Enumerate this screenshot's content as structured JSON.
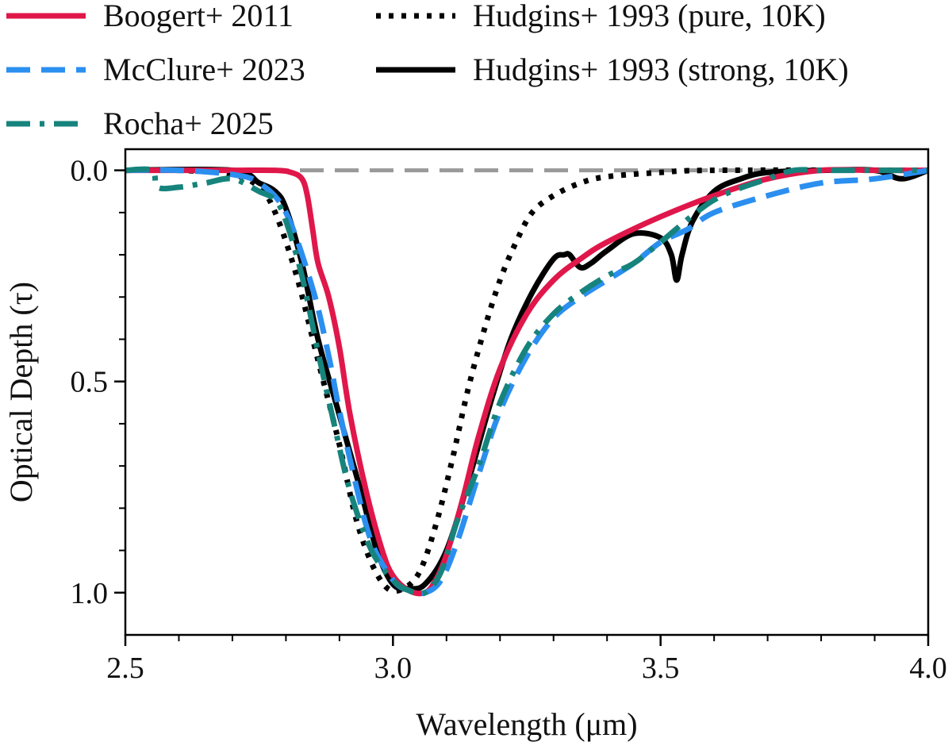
{
  "chart_data": {
    "type": "line",
    "title": "",
    "xlabel": "Wavelength (μm)",
    "ylabel": "Optical Depth (τ)",
    "xlim": [
      2.5,
      4.0
    ],
    "ylim": [
      1.1,
      -0.05
    ],
    "y_inverted": true,
    "xticks": [
      2.5,
      3.0,
      3.5,
      4.0
    ],
    "xtick_labels": [
      "2.5",
      "3.0",
      "3.5",
      "4.0"
    ],
    "xticks_minor": [
      2.6,
      2.7,
      2.8,
      2.9,
      3.1,
      3.2,
      3.3,
      3.4,
      3.6,
      3.7,
      3.8,
      3.9
    ],
    "yticks": [
      0.0,
      0.5,
      1.0
    ],
    "ytick_labels": [
      "0.0",
      "0.5",
      "1.0"
    ],
    "yticks_minor": [
      0.1,
      0.2,
      0.3,
      0.4,
      0.6,
      0.7,
      0.8,
      0.9
    ],
    "grid": false,
    "legend_position": "top",
    "reference_line": {
      "name": "zero",
      "y": 0.0,
      "color": "#999999",
      "style": "dashed"
    },
    "series": [
      {
        "name": "Boogert+ 2011",
        "color": "#e0174a",
        "style": "solid",
        "x": [
          2.5,
          2.6,
          2.7,
          2.78,
          2.81,
          2.83,
          2.84,
          2.85,
          2.86,
          2.88,
          2.9,
          2.92,
          2.95,
          2.98,
          3.0,
          3.03,
          3.06,
          3.08,
          3.1,
          3.13,
          3.16,
          3.2,
          3.25,
          3.3,
          3.35,
          3.4,
          3.5,
          3.6,
          3.7,
          3.8,
          3.9,
          4.0
        ],
        "y": [
          0.0,
          0.0,
          0.0,
          0.0,
          0.005,
          0.02,
          0.06,
          0.14,
          0.22,
          0.3,
          0.42,
          0.58,
          0.76,
          0.9,
          0.96,
          0.995,
          1.0,
          0.97,
          0.91,
          0.78,
          0.63,
          0.47,
          0.34,
          0.26,
          0.21,
          0.17,
          0.11,
          0.06,
          0.02,
          0.0,
          0.0,
          0.0
        ]
      },
      {
        "name": "McClure+ 2023",
        "color": "#2b8ff0",
        "style": "dashed",
        "x": [
          2.5,
          2.6,
          2.7,
          2.75,
          2.8,
          2.85,
          2.88,
          2.9,
          2.93,
          2.96,
          3.0,
          3.03,
          3.06,
          3.09,
          3.12,
          3.16,
          3.2,
          3.25,
          3.3,
          3.35,
          3.4,
          3.45,
          3.5,
          3.55,
          3.6,
          3.7,
          3.8,
          3.9,
          4.0
        ],
        "y": [
          0.0,
          0.0,
          0.01,
          0.03,
          0.1,
          0.28,
          0.44,
          0.57,
          0.74,
          0.88,
          0.97,
          0.995,
          1.0,
          0.97,
          0.88,
          0.72,
          0.57,
          0.44,
          0.35,
          0.3,
          0.26,
          0.22,
          0.17,
          0.14,
          0.1,
          0.06,
          0.03,
          0.02,
          0.0
        ]
      },
      {
        "name": "Rocha+ 2025",
        "color": "#16847c",
        "style": "dashdot",
        "x": [
          2.5,
          2.55,
          2.56,
          2.6,
          2.65,
          2.7,
          2.75,
          2.78,
          2.8,
          2.83,
          2.86,
          2.89,
          2.92,
          2.96,
          3.0,
          3.03,
          3.06,
          3.09,
          3.12,
          3.16,
          3.2,
          3.25,
          3.3,
          3.35,
          3.4,
          3.45,
          3.5,
          3.6,
          3.7,
          3.75,
          3.8,
          3.9,
          4.0
        ],
        "y": [
          0.0,
          0.0,
          0.04,
          0.04,
          0.03,
          0.02,
          0.05,
          0.07,
          0.12,
          0.25,
          0.43,
          0.6,
          0.76,
          0.9,
          0.97,
          0.995,
          1.0,
          0.95,
          0.83,
          0.7,
          0.55,
          0.42,
          0.34,
          0.29,
          0.25,
          0.22,
          0.17,
          0.07,
          0.02,
          0.0,
          0.0,
          0.0,
          0.0
        ]
      },
      {
        "name": "Hudgins+ 1993 (pure, 10K)",
        "color": "#000000",
        "style": "dotted",
        "x": [
          2.5,
          2.6,
          2.7,
          2.75,
          2.78,
          2.82,
          2.86,
          2.9,
          2.93,
          2.96,
          2.99,
          3.02,
          3.05,
          3.08,
          3.11,
          3.14,
          3.17,
          3.2,
          3.23,
          3.26,
          3.3,
          3.35,
          3.4,
          3.5,
          3.6,
          4.0
        ],
        "y": [
          0.0,
          0.0,
          0.01,
          0.04,
          0.1,
          0.25,
          0.45,
          0.65,
          0.82,
          0.93,
          0.99,
          0.99,
          0.95,
          0.84,
          0.69,
          0.52,
          0.38,
          0.26,
          0.17,
          0.1,
          0.06,
          0.03,
          0.015,
          0.005,
          0.0,
          0.0
        ]
      },
      {
        "name": "Hudgins+ 1993 (strong, 10K)",
        "color": "#000000",
        "style": "solid",
        "x": [
          2.5,
          2.7,
          2.75,
          2.78,
          2.8,
          2.83,
          2.86,
          2.9,
          2.94,
          2.97,
          3.0,
          3.03,
          3.06,
          3.1,
          3.14,
          3.18,
          3.22,
          3.26,
          3.3,
          3.32,
          3.33,
          3.35,
          3.37,
          3.4,
          3.45,
          3.5,
          3.52,
          3.53,
          3.54,
          3.56,
          3.6,
          3.65,
          3.7,
          3.8,
          3.9,
          3.95,
          4.0
        ],
        "y": [
          0.0,
          0.0,
          0.03,
          0.05,
          0.09,
          0.22,
          0.4,
          0.58,
          0.76,
          0.9,
          0.98,
          0.99,
          0.98,
          0.9,
          0.74,
          0.56,
          0.4,
          0.29,
          0.21,
          0.2,
          0.2,
          0.23,
          0.22,
          0.19,
          0.15,
          0.16,
          0.2,
          0.26,
          0.2,
          0.12,
          0.05,
          0.02,
          0.005,
          0.0,
          0.0,
          0.02,
          0.0
        ]
      }
    ]
  }
}
